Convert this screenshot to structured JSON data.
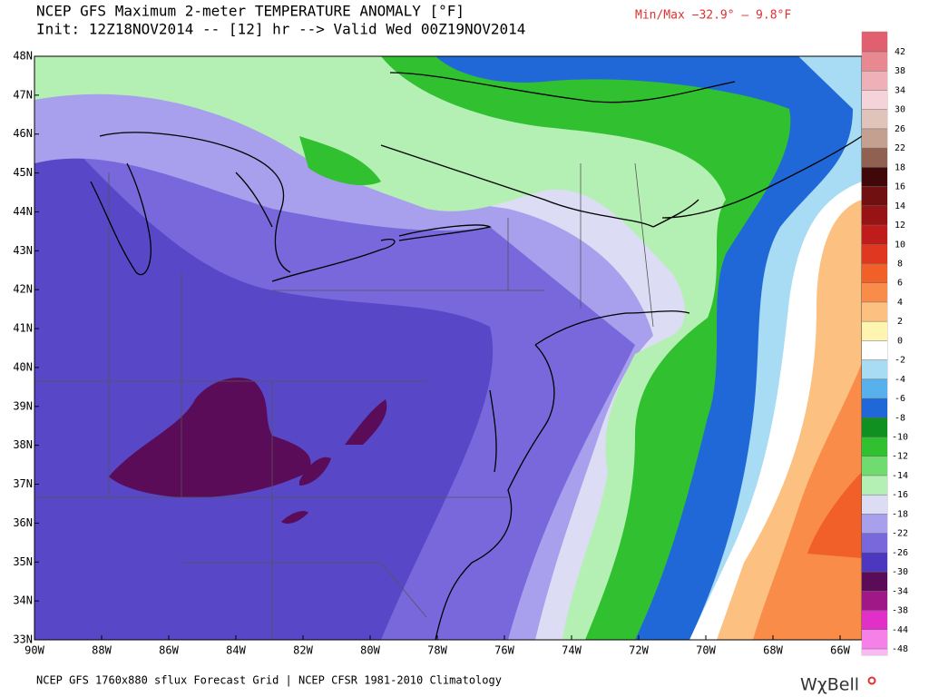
{
  "header": {
    "title": "NCEP GFS Maximum 2-meter TEMPERATURE ANOMALY [°F]",
    "init": "Init: 12Z18NOV2014 -- [12] hr --> Valid Wed 00Z19NOV2014",
    "minmax": "Min/Max −32.9° –   9.8°F"
  },
  "map": {
    "lat_labels": [
      "48N",
      "47N",
      "46N",
      "45N",
      "44N",
      "43N",
      "42N",
      "41N",
      "40N",
      "39N",
      "38N",
      "37N",
      "36N",
      "35N",
      "34N",
      "33N"
    ],
    "lon_labels": [
      "90W",
      "88W",
      "86W",
      "84W",
      "82W",
      "80W",
      "78W",
      "76W",
      "74W",
      "72W",
      "70W",
      "68W",
      "66W"
    ]
  },
  "colorbar": {
    "labels": [
      42,
      38,
      34,
      30,
      26,
      22,
      18,
      16,
      14,
      12,
      10,
      8,
      6,
      4,
      2,
      0,
      -2,
      -4,
      -6,
      -8,
      -10,
      -12,
      -14,
      -16,
      -18,
      -22,
      -26,
      -30,
      -34,
      -38,
      -44,
      -48
    ],
    "colors": [
      "#e06070",
      "#e88890",
      "#f0b0b8",
      "#f4d4d8",
      "#e0c4bc",
      "#c4a090",
      "#906050",
      "#400808",
      "#701010",
      "#981414",
      "#c01c1c",
      "#e03820",
      "#f06028",
      "#f88c48",
      "#fcc080",
      "#fff4b0",
      "#ffffff",
      "#a8dcf4",
      "#58b0ec",
      "#2068d8",
      "#109020",
      "#30c030",
      "#70dc70",
      "#b4f0b4",
      "#dcdcf4",
      "#a8a0ec",
      "#7868dc",
      "#4c38c0",
      "#5a0c58",
      "#a01888",
      "#e030c8",
      "#f480e8",
      "#fab8f4"
    ]
  },
  "footer": {
    "source": "NCEP GFS 1760x880 sflux Forecast Grid | NCEP CFSR 1981-2010 Climatology",
    "logo": "WχBell"
  }
}
